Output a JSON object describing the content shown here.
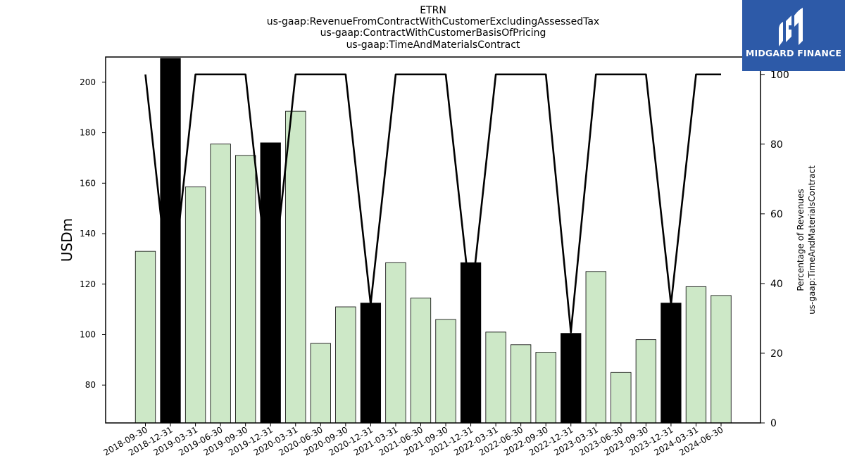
{
  "title": {
    "line1": "ETRN",
    "line2": "us-gaap:RevenueFromContractWithCustomerExcludingAssessedTax",
    "line3": "us-gaap:ContractWithCustomerBasisOfPricing",
    "line4": "us-gaap:TimeAndMaterialsContract"
  },
  "logo": {
    "text": "MIDGARD FINANCE",
    "icon": "midgard-logo-icon",
    "background": "#2d5aa8"
  },
  "colors": {
    "bar_regular": "#cde8c7",
    "bar_q4": "#000000",
    "line": "#000000"
  },
  "chart_data": {
    "type": "bar",
    "categories": [
      "2018-09-30",
      "2018-12-31",
      "2019-03-31",
      "2019-06-30",
      "2019-09-30",
      "2019-12-31",
      "2020-03-31",
      "2020-06-30",
      "2020-09-30",
      "2020-12-31",
      "2021-03-31",
      "2021-06-30",
      "2021-09-30",
      "2021-12-31",
      "2022-03-31",
      "2022-06-30",
      "2022-09-30",
      "2022-12-31",
      "2023-03-31",
      "2023-06-30",
      "2023-09-30",
      "2023-12-31",
      "2024-03-31",
      "2024-06-30"
    ],
    "values": [
      133,
      209.5,
      158.5,
      175.5,
      171,
      176,
      188.5,
      96.5,
      111,
      112.5,
      128.5,
      114.5,
      106,
      128.5,
      101,
      96,
      93,
      100.5,
      125,
      85,
      98,
      112.5,
      119,
      115.5
    ],
    "highlight_black": [
      false,
      true,
      false,
      false,
      false,
      true,
      false,
      false,
      false,
      true,
      false,
      false,
      false,
      true,
      false,
      false,
      false,
      true,
      false,
      false,
      false,
      true,
      false,
      false
    ],
    "line_series": {
      "axis": "right",
      "values": [
        100,
        34,
        100,
        100,
        100,
        34,
        100,
        100,
        100,
        34,
        100,
        100,
        100,
        34,
        100,
        100,
        100,
        26,
        100,
        100,
        100,
        34,
        100,
        100
      ]
    },
    "ylabel": "USDm",
    "ylabel_right_line1": "Percentage of Revenues",
    "ylabel_right_line2": "us-gaap:TimeAndMaterialsContract",
    "ylim": [
      65,
      210
    ],
    "yticks": [
      80,
      100,
      120,
      140,
      160,
      180,
      200
    ],
    "ylim_right": [
      0,
      105
    ],
    "yticks_right": [
      0,
      20,
      40,
      60,
      80,
      100
    ],
    "grid": false
  }
}
